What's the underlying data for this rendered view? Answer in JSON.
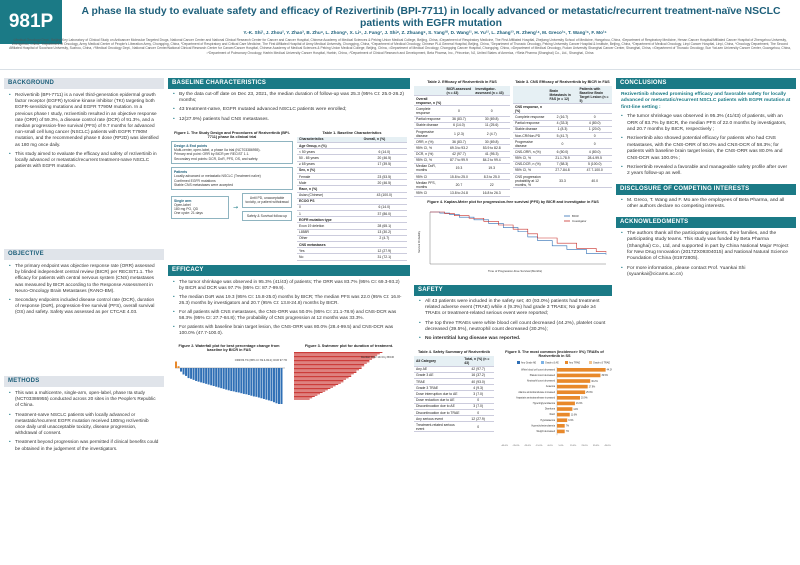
{
  "header": {
    "poster_number": "981P",
    "title": "A phase IIa study to evaluate safety and efficacy of Rezivertinib (BPI-7711) in locally advanced or metastatic/recurrent treatment-naïve NSCLC patients with EGFR mutation",
    "authors": "Y.-K. Shi¹, J. Zhou², Y. Zhao³, B. Zhu⁴, L. Zhong⁵, X. Li⁶, J. Fang⁷, J. Shi⁸, Z. Zhuang⁹, S. Yang¹⁰, D. Wang¹¹, H. Yu¹², L. Zhang¹³, R. Zheng¹⁴, M. Greco¹⁵, T. Wang¹⁶, F. Mo¹⁶",
    "affiliations": "¹Medical Oncology Dept., Beijing Key Laboratory of Clinical Study on Anticancer Molecular Targeted Drugs, National Cancer Center and National Clinical Research Center for Cancer and Cancer Hospital, Chinese Academy of Medical Sciences & Peking Union Medical College, Beijing, China, ²Department of Respiratory Medicine, The First Affiliated Hospital, Zhejiang University School of Medicine, Hangzhou, China, ³Department of Respiratory Medicine, Henan Cancer Hospital/Affiliated Cancer Hospital of Zhengzhou University, Zhengzhou, China, ⁴Department of Oncology, Army Medical Center of People's Liberation Army, Chongqing, China, ⁵Department of Respiratory and Critical Care Medicine, The First Affiliated Hospital of Army Medical University, Chongqing, China, ⁶Department of Medical Oncology, Chinese PLA General Hospital, Beijing, China, ⁷Department of Thoracic Oncology, Peking University Cancer Hospital & Institute, Beijing, China, ⁸Department of Medical Oncology, Linyi Cancer Hospital, Linyi, China, ⁹Oncology Department, The Second Affiliated Hospital of Soochow University, Suzhou, China, ¹⁰Medical Oncology Dept., National Cancer Center/National Clinical Research Center for Cancer/Cancer Hospital, Chinese Academy of Medical Sciences & Peking Union Medical College, Beijing, China, ¹¹Department of Medical Oncology, Chongqing Cancer Hospital, Chongqing, China, ¹²Department of Medical Oncology, Fudan University Shanghai Cancer Center, Shanghai, China, ¹³Department of Thoracic Oncology, Sun Yat-sen University Cancer Center, Guangzhou, China, ¹⁴Department of Pulmonary Oncology, Harbin Medical University Cancer Hospital, Harbin, China, ¹⁵Department of Clinical Research and Development, Beta Pharma, Inc., Princeton, NJ, United States of America, ¹⁶Beta Pharma (Shanghai) Co., Ltd., Shanghai, China"
  },
  "background": {
    "heading": "BACKGROUND",
    "items": [
      "Rezivertinib (BPI-7711) is a novel third-generation epidermal growth factor receptor (EGFR) tyrosine kinase inhibitor (TKI) targeting both EGFR-sensitizing mutations and EGFR T790M mutation. In a previous phase I study, rezivertinib resulted in an objective response rate (ORR) of 59.3%, a disease control rate (DCR) of 91.3%, and a median progression-free survival (PFS) of 9.7 months for advanced non-small cell lung cancer (NSCLC) patients with EGFR T790M mutation, and the recommended phase II dose (RP2D) was identified as 180 mg once daily.",
      "This study aimed to evaluate the efficacy and safety of rezivertinib in locally advanced or metastatic/recurrent treatment-naïve NSCLC patients with EGFR mutation."
    ]
  },
  "objective": {
    "heading": "OBJECTIVE",
    "items": [
      "The primary endpoint was objective response rate (ORR) assessed by blinded independent central review (BICR) per RECIST1.1. The efficacy for patients with central nervous system (CNS) metastases was measured by BICR according to the Response Assessment in Neuro-Oncology Brain Metastases (RANO-BM).",
      "Secondary endpoints included disease control rate (DCR), duration of response (DoR), progression-free survival (PFS), overall survival (OS) and safety. Safety was assessed as per CTCAE 4.03."
    ]
  },
  "methods": {
    "heading": "METHODS",
    "items": [
      "This was a multicentre, single-arm, open-label, phase IIa study (NCT03386955) conducted across 20 sites in the People's Republic of China.",
      "Treatment-naïve NSCLC patients with locally advanced or metastatic/recurrent EGFR mutation received 180mg rezivertinib once daily until unacceptable toxicity, disease progression, withdrawal of consent.",
      "Treatment beyond progression was permitted if clinical benefits could be obtained in the judgement of the investigators."
    ]
  },
  "baseline": {
    "heading": "BASELINE CHARACTERISTICS",
    "items": [
      "By the data cut-off date on Dec 23, 2021, the median duration of follow-up was 25.3 (95% CI: 25.0-26.2) months;",
      "43 treatment-naïve, EGFR mutated advanced NSCLC patients were enrolled;",
      "12(27.9%) patients had CNS metastases."
    ],
    "fig1_title": "Figure 1. The Study Design and Procedures of Rezivertinib (BPI-7711) phase IIa clinical trial",
    "design_box": [
      "Design & End points",
      "Multi-center, open-label, a phase IIa trial (NCT03386955).",
      "Primary end point: ORR by BICR per RECIST 1.1.",
      "Secondary end points: DCR, DoR, PFS, OS, and safety."
    ],
    "patients_box": [
      "Patients",
      "Locally advanced or metastatic NSCLC (Treatment naïve)",
      "Confirmed EGFR mutations",
      "Stable CNS metastases were accepted"
    ],
    "single_arm_box": [
      "Single arm",
      "Open-label",
      "180 mg PO, QD",
      "One cycle: 21 days"
    ],
    "flow_box": "Until PD, unacceptable toxicity, or patient withdrawal",
    "followup_box": "Safety & Survival follow-up",
    "table1_title": "Table 1. Baseline Characteristics",
    "table1_head": [
      "Characteristics",
      "Overall, n (%)"
    ],
    "table1_rows": [
      [
        "Age Group, n (%)",
        ""
      ],
      [
        "< 50 years",
        "6 (14.0)"
      ],
      [
        "50 - 65 years",
        "20 (46.5)"
      ],
      [
        "≥ 65 years",
        "17 (39.5)"
      ],
      [
        "Sex, n (%)",
        ""
      ],
      [
        "Female",
        "23 (53.5)"
      ],
      [
        "Male",
        "20 (46.5)"
      ],
      [
        "Race, n (%)",
        ""
      ],
      [
        "Asian (Chinese)",
        "43 (100.0)"
      ],
      [
        "ECOG PS",
        ""
      ],
      [
        "0",
        "6 (14.0)"
      ],
      [
        "1",
        "37 (86.0)"
      ],
      [
        "EGFR mutation type",
        ""
      ],
      [
        "Exon 19 deletion",
        "28 (65.1)"
      ],
      [
        "L858R",
        "13 (30.2)"
      ],
      [
        "Other",
        "2 (4.7)"
      ],
      [
        "CNS metastases",
        ""
      ],
      [
        "Yes",
        "12 (27.9)"
      ],
      [
        "No",
        "31 (72.1)"
      ]
    ]
  },
  "efficacy": {
    "heading": "EFFICACY",
    "items": [
      "The tumor shrinkage was observed in 95.3% (41/43) of patients; The ORR was 83.7% (95% CI: 69.3-93.2) by BICR and DCR was 97.7% (95% CI: 87.7-99.9).",
      "The median DoR was 19.3 (95% CI: 15.8-25.0) months by BICR; The median PFS was 22.0 (95% CI: 16.8-26.3) months by investigators and 20.7 (95% CI: 13.8-24.8) months by BICR.",
      "For all patients with CNS metastases, the CNS-ORR was 50.0% (95% CI: 21.1-78.9) and CNS-DCR was 58.3% (95% CI: 27.7-84.8); The probability of CNS progression at 12 months was 33.3%.",
      "For patients with baseline brain target lesion, the CNS-ORR was 80.0% (28.4-99.5) and CNS-DCR was 100.0% (47.7-100.0)."
    ],
    "fig2_title": "Figure 2. Waterfall plot for best percentage change from baseline by BICR in FAS",
    "fig3_title": "Figure 3. Swimmer plot for duration of treatment.",
    "fig2_note": "ORR 83.7% (95% CI: 69.3-93.2); DCR 97.7% (95% CI: 87.7-99.9)",
    "fig3_note": "Median DoR 19.3 by BICR",
    "waterfall": [
      18,
      5,
      -10,
      -18,
      -22,
      -28,
      -30,
      -33,
      -36,
      -38,
      -40,
      -42,
      -44,
      -46,
      -48,
      -50,
      -52,
      -54,
      -56,
      -58,
      -60,
      -62,
      -64,
      -65,
      -67,
      -68,
      -70,
      -72,
      -73,
      -75,
      -77,
      -79,
      -80,
      -82,
      -84,
      -86,
      -88,
      -90,
      -92,
      -95,
      -98,
      -100,
      -100
    ],
    "swimmer": [
      34,
      33,
      32,
      31,
      31,
      30,
      29,
      29,
      28,
      27,
      27,
      26,
      26,
      25,
      24,
      24,
      23,
      22,
      22,
      21,
      20,
      19,
      19,
      18,
      17,
      16,
      15,
      14,
      13,
      12,
      11,
      10,
      9,
      8,
      7,
      6
    ]
  },
  "table2": {
    "title": "Table 2. Efficacy of Rezivertinib in FAS",
    "head": [
      "",
      "BICR-assessed (n = 43)",
      "Investigator-assessed (n = 43)"
    ],
    "rows": [
      [
        "Overall response, n (%)",
        "",
        ""
      ],
      [
        "Complete response",
        "0",
        "0"
      ],
      [
        "Partial response",
        "36 (83.7)",
        "30 (69.8)"
      ],
      [
        "Stable disease",
        "6 (14.0)",
        "11 (25.6)"
      ],
      [
        "Progressive disease",
        "1 (2.3)",
        "2 (4.7)"
      ],
      [
        "ORR, n (%)",
        "36 (83.7)",
        "30 (69.8)"
      ],
      [
        "95% CI, %",
        "69.3 to 93.2",
        "53.9 to 82.8"
      ],
      [
        "DCR, n (%)",
        "42 (97.7)",
        "41 (95.3)"
      ],
      [
        "95% CI, %",
        "87.7 to 99.9",
        "84.2 to 99.4"
      ],
      [
        "Median DoR, months",
        "19.3",
        "19.3"
      ],
      [
        "95% CI",
        "15.8 to 25.0",
        "8.3 to 25.0"
      ],
      [
        "Median PFS, months",
        "20.7",
        "22"
      ],
      [
        "95% CI",
        "13.8 to 24.8",
        "16.8 to 26.3"
      ]
    ]
  },
  "table3": {
    "title": "Table 3. CNS Efficacy of Rezivertinib by BICR in FAS",
    "head": [
      "",
      "Brain Metastasis in FAS (n = 12)",
      "Patients with Baseline Brain Target Lesion (n = 5)"
    ],
    "rows": [
      [
        "CNS response, n (%)",
        "",
        ""
      ],
      [
        "Complete response",
        "2 (16.7)",
        "0"
      ],
      [
        "Partial response",
        "4 (33.3)",
        "4 (80.0)"
      ],
      [
        "Stable disease",
        "1 (8.3)",
        "1 (20.0)"
      ],
      [
        "Non-CR/Non-PD",
        "5 (41.7)",
        "0"
      ],
      [
        "Progressive disease",
        "0",
        "0"
      ],
      [
        "CNS-ORR, n (%)",
        "6 (50.0)",
        "4 (80.0)"
      ],
      [
        "95% CI, %",
        "21.1-78.9",
        "28.4-99.5"
      ],
      [
        "CNS-DCR, n (%)",
        "7 (58.3)",
        "5 (100.0)"
      ],
      [
        "95% CI, %",
        "27.7-84.8",
        "47.7-100.0"
      ],
      [
        "CNS progression probability at 12 months, %",
        "33.3",
        "40.0"
      ]
    ]
  },
  "fig4": {
    "title": "Figure 4. Kaplan-Meier plot for progression-free survival (PFS) by BICR and investigator in FAS",
    "xlabel": "Time of Progression-Free Survival (Months)",
    "ylabel": "Survival Probability",
    "legend": [
      "BICR",
      "Investigator"
    ]
  },
  "safety": {
    "heading": "SAFETY",
    "items": [
      "All 43 patients were included in the safety set; 40 (93.0%) patients had treatment related adverse event (TRAE) while 4 (9.3%) had grade 3 TRAEs; No grade ≥4 TRAEs or treatment-related serious event were reported;",
      "The top three TRAEs were white blood cell count decreased (44.2%), platelet count decreased (39.5%), neutrophil count decreased (30.2%);",
      "No interstitial lung disease was reported."
    ],
    "table4_title": "Table 4. Safety Summary of Rezivertinib",
    "table4_head": [
      "All Category",
      "Total, n (%) (n = 43)"
    ],
    "table4_rows": [
      [
        "Any AE",
        "42 (97.7)"
      ],
      [
        "Grade 3 AE",
        "16 (37.2)"
      ],
      [
        "TRAE",
        "40 (93.0)"
      ],
      [
        "Grade 3 TRAE",
        "4 (9.3)"
      ],
      [
        "Dose interruption due to AE",
        "3 (7.0)"
      ],
      [
        "Dose reduction due to AE",
        "0"
      ],
      [
        "Discontinuation due to AE",
        "3 (7.0)"
      ],
      [
        "Discontinuation due to TRAE",
        "0"
      ],
      [
        "Any serious event",
        "12 (27.9)"
      ],
      [
        "Treatment-related serious event",
        "0"
      ]
    ],
    "fig5_title": "Figure 5. The most common (incidence> 5%) TRAEs of Rezivertinib in SS",
    "fig5_legend": [
      "Any Grade AE",
      "Grade ≥3 AE",
      "Any TRAE",
      "Grade ≥3 TRAE"
    ],
    "fig5_items": [
      [
        "White blood cell count decreased",
        44.2
      ],
      [
        "Platelet count decreased",
        39.5
      ],
      [
        "Neutrophil count decreased",
        30.2
      ],
      [
        "Anaemia",
        27.9
      ],
      [
        "Alanine aminotransferase increased",
        25.6
      ],
      [
        "Aspartate aminotransferase increased",
        20.9
      ],
      [
        "Hypertriglyceridaemia",
        16.3
      ],
      [
        "Diarrhoea",
        14.0
      ],
      [
        "Rash",
        11.6
      ],
      [
        "Hypokalaemia",
        9.3
      ],
      [
        "Hypercholesterolaemia",
        7.0
      ],
      [
        "Weight decreased",
        7.0
      ]
    ],
    "fig5_ticks": [
      "-45.0%",
      "-35.0%",
      "-25.0%",
      "-15.0%",
      "-5.0%",
      "5.0%",
      "15.0%",
      "25.0%",
      "35.0%",
      "45.0%"
    ]
  },
  "conclusions": {
    "heading": "CONCLUSIONS",
    "lead": "Rezivertinib showed promising efficacy and favorable safety for locally advanced or metastatic/recurrent NSCLC patients with EGFR mutation at first-line setting :",
    "items": [
      "The tumor shrinkage was observed in 95.3% (41/43) of patients, with an ORR of 83.7% by BICR, the median PFS of 22.0 months by investigators, and 20.7 months by BICR, respectively ;",
      "Rezivertinib also showed potential efficacy for patients who had CNS metastases, with the CNS-ORR of 50.0% and CNS-DCR of 58.3%; for patients with baseline brain target lesion, the CNS-ORR was 80.0% and CNS-DCR was 100.0% ;",
      "Rezivertinib revealed a favorable and manageable safety profile after over 2 years follow-up as well."
    ]
  },
  "disclosure": {
    "heading": "DISCLOSURE OF COMPETING INTERESTS",
    "items": [
      "M. Greco, T. Wang and F. Mo are the employees of Beta Pharma, and all other authors declare no competing interests."
    ]
  },
  "acknowledgments": {
    "heading": "ACKNOWLEDGMENTS",
    "items": [
      "The authors thank all the participating patients, their families, and the participating study teams. This study was funded by Beta Pharma (Shanghai) Co., Ltd, and supported in part by China National Major Project for New Drug Innovation (2017ZX09304015) and National Natural Science Foundation of China (81972805).",
      "For more information, please contact Prof. Yuankai Shi (syuankai@cicams.ac.cn)"
    ]
  },
  "colors": {
    "accent": "#1b7a86",
    "heading_bg": "#e0e4ea",
    "bar_blue": "#2f6fb5",
    "bar_orange": "#e8892b"
  }
}
